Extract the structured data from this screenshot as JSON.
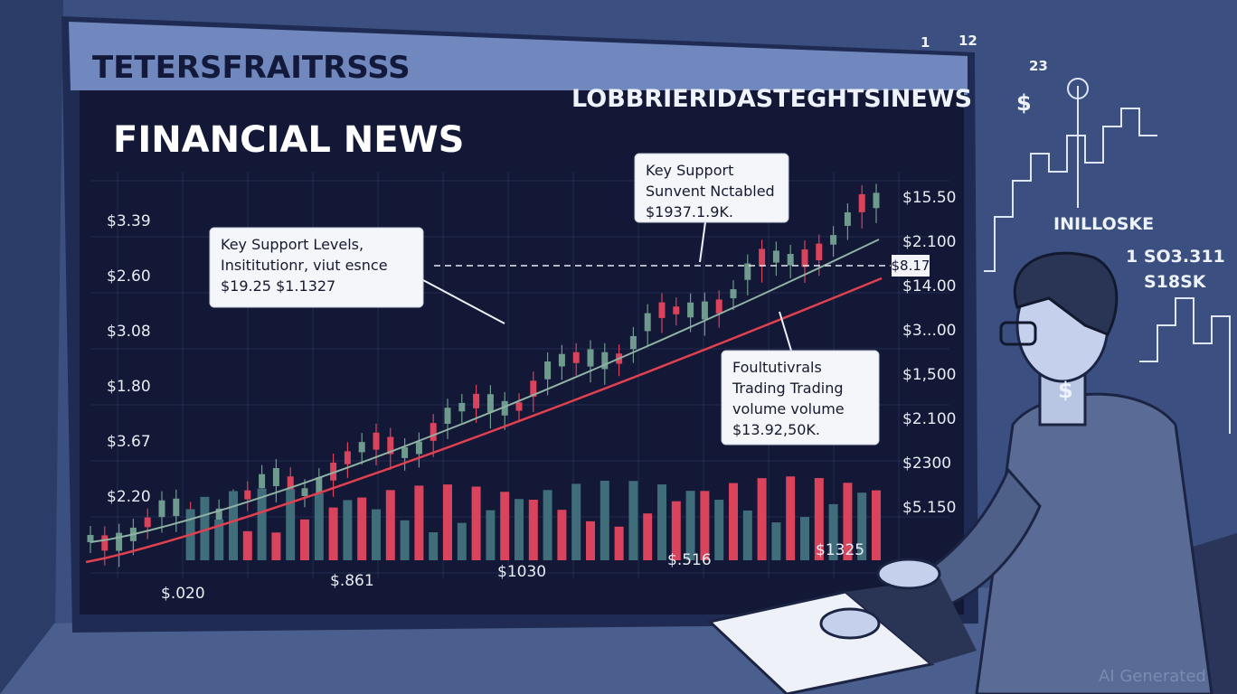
{
  "header": {
    "left": "TETERSFRAITRSSS",
    "right": "LOBBRIERIDASTEGHTSINEWS"
  },
  "screen": {
    "title": "FINANCIAL NEWS",
    "left_axis": [
      "$3.39",
      "$2.60",
      "$3.08",
      "$1.80",
      "$3.67",
      "$2.20"
    ],
    "right_axis": [
      "$15.50",
      "$2.100",
      "$14.00",
      "$3...00",
      "$1,500",
      "$2.100",
      "$2300",
      "$5.150"
    ],
    "price_tag": "$8.17",
    "bottom_axis": [
      "$.020",
      "$.861",
      "$1030",
      "$.516",
      "$1325"
    ],
    "callouts": [
      {
        "lines": [
          "Key Support Levels,",
          "Insititutionr, viut esnce",
          "$19.25 $1.1327"
        ]
      },
      {
        "lines": [
          "Key Support",
          "Sunvent Nctabled",
          "$1937.1.9K."
        ]
      },
      {
        "lines": [
          "Foultutivrals",
          "Trading Trading",
          "volume volume",
          "$13.92,50K."
        ]
      }
    ]
  },
  "background": {
    "numbers": [
      "1",
      "12",
      "23"
    ],
    "symbols": [
      "$",
      "$"
    ],
    "labels": [
      "INILLOSKE",
      "1 SO3.311",
      "S18SK"
    ]
  },
  "watermark": "AI Generated"
}
